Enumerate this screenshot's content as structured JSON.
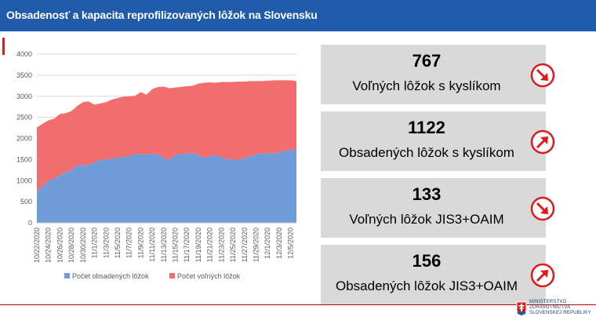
{
  "header": {
    "title": "Obsadenosť a kapacita reprofilizovaných lôžok na Slovensku"
  },
  "colors": {
    "header_bg": "#1f5ba9",
    "occupied": "#6f9bd8",
    "free": "#f26d6d",
    "card_bg": "#d9d9d9",
    "arrow": "#e0191b"
  },
  "chart_data": {
    "type": "area",
    "stacked": true,
    "ylim": [
      0,
      4000
    ],
    "yticks": [
      0,
      500,
      1000,
      1500,
      2000,
      2500,
      3000,
      3500,
      4000
    ],
    "x": [
      "10/22/2020",
      "10/23/2020",
      "10/24/2020",
      "10/25/2020",
      "10/26/2020",
      "10/27/2020",
      "10/28/2020",
      "10/29/2020",
      "10/30/2020",
      "10/31/2020",
      "11/1/2020",
      "11/2/2020",
      "11/3/2020",
      "11/4/2020",
      "11/5/2020",
      "11/6/2020",
      "11/7/2020",
      "11/8/2020",
      "11/9/2020",
      "11/10/2020",
      "11/11/2020",
      "11/12/2020",
      "11/13/2020",
      "11/14/2020",
      "11/15/2020",
      "11/16/2020",
      "11/17/2020",
      "11/18/2020",
      "11/19/2020",
      "11/20/2020",
      "11/21/2020",
      "11/22/2020",
      "11/23/2020",
      "11/24/2020",
      "11/25/2020",
      "11/26/2020",
      "11/27/2020",
      "11/28/2020",
      "11/29/2020",
      "11/30/2020",
      "12/1/2020",
      "12/2/2020",
      "12/3/2020",
      "12/4/2020",
      "12/5/2020",
      "12/6/2020"
    ],
    "xtick_labels": [
      "10/22/2020",
      "10/24/2020",
      "10/26/2020",
      "10/28/2020",
      "10/30/2020",
      "11/1/2020",
      "11/3/2020",
      "11/5/2020",
      "11/7/2020",
      "11/9/2020",
      "11/11/2020",
      "11/13/2020",
      "11/15/2020",
      "11/17/2020",
      "11/19/2020",
      "11/21/2020",
      "11/23/2020",
      "11/25/2020",
      "11/27/2020",
      "11/29/2020",
      "12/1/2020",
      "12/3/2020",
      "12/5/2020"
    ],
    "series": [
      {
        "name": "Počet obsadených lôžok",
        "values": [
          750,
          870,
          1000,
          1050,
          1130,
          1200,
          1250,
          1370,
          1360,
          1380,
          1430,
          1500,
          1500,
          1520,
          1540,
          1560,
          1580,
          1630,
          1620,
          1620,
          1640,
          1610,
          1540,
          1500,
          1610,
          1630,
          1640,
          1660,
          1600,
          1540,
          1580,
          1600,
          1550,
          1510,
          1500,
          1490,
          1540,
          1580,
          1630,
          1650,
          1650,
          1650,
          1670,
          1700,
          1730,
          1750
        ]
      },
      {
        "name": "Počet voľných lôžok",
        "values": [
          1510,
          1480,
          1430,
          1420,
          1450,
          1400,
          1400,
          1400,
          1500,
          1500,
          1370,
          1330,
          1360,
          1400,
          1420,
          1430,
          1420,
          1380,
          1480,
          1420,
          1530,
          1610,
          1690,
          1690,
          1600,
          1590,
          1600,
          1590,
          1700,
          1780,
          1750,
          1720,
          1790,
          1830,
          1840,
          1860,
          1810,
          1780,
          1730,
          1710,
          1720,
          1730,
          1710,
          1680,
          1650,
          1610
        ]
      }
    ]
  },
  "cards": [
    {
      "value": "767",
      "label": "Voľných lôžok s kyslíkom",
      "trend": "down",
      "icon": "arrow-down-right-icon"
    },
    {
      "value": "1122",
      "label": "Obsadených lôžok s kyslíkom",
      "trend": "up",
      "icon": "arrow-up-right-icon"
    },
    {
      "value": "133",
      "label": "Voľných lôžok JIS3+OAIM",
      "trend": "down",
      "icon": "arrow-down-right-icon"
    },
    {
      "value": "156",
      "label": "Obsadených lôžok JIS3+OAIM",
      "trend": "up",
      "icon": "arrow-up-right-icon"
    }
  ],
  "footer": {
    "ministry_lines": [
      "MINISTERSTVO",
      "ZDRAVOTNÍCTVA",
      "SLOVENSKEJ REPUBLIKY"
    ],
    "logo_icon": "slovak-coat-of-arms-icon"
  }
}
